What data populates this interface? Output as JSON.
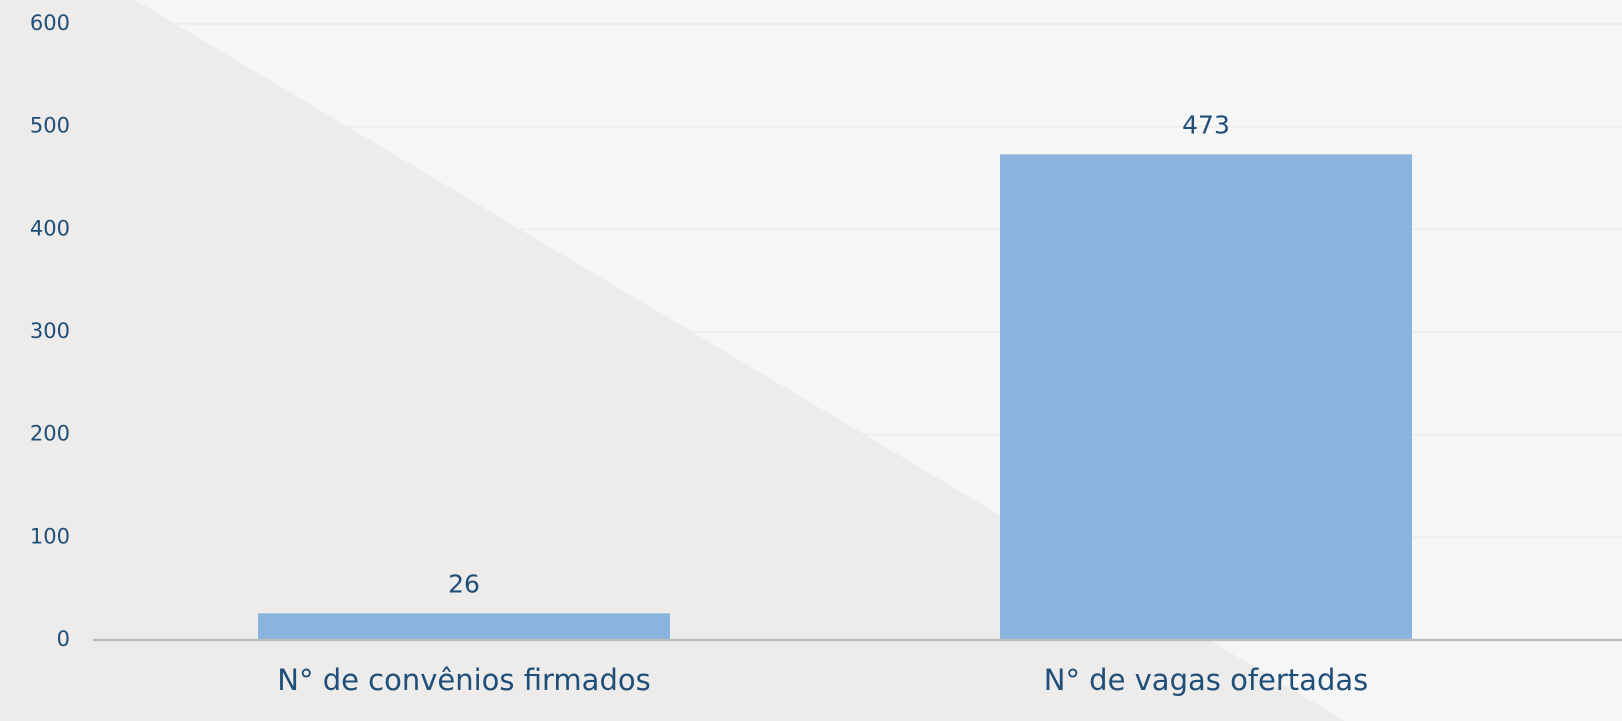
{
  "chart_data": {
    "type": "bar",
    "categories": [
      "N° de convênios firmados",
      "N° de vagas ofertadas"
    ],
    "values": [
      26,
      473
    ],
    "color": "#8ab4de",
    "ylim": [
      0,
      600
    ],
    "yticks": [
      0,
      100,
      200,
      300,
      400,
      500,
      600
    ],
    "grid": true
  }
}
